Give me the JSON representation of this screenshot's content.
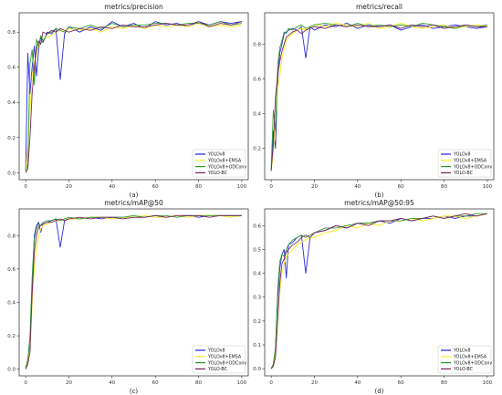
{
  "chart_data": [
    {
      "type": "line",
      "title": "metrics/precision",
      "caption": "(a)",
      "xlabel": "",
      "ylabel": "",
      "xlim": [
        -3,
        103
      ],
      "ylim": [
        -0.04,
        0.91
      ],
      "xticks": [
        0,
        20,
        40,
        60,
        80,
        100
      ],
      "yticks": [
        0.0,
        0.2,
        0.4,
        0.6,
        0.8
      ],
      "ytick_labels": [
        "0.0",
        "0.2",
        "0.4",
        "0.6",
        "0.8"
      ],
      "grid": false,
      "legend": "lower-right",
      "x": [
        0,
        1,
        2,
        3,
        4,
        5,
        6,
        7,
        8,
        10,
        12,
        14,
        16,
        18,
        20,
        25,
        30,
        35,
        40,
        45,
        50,
        55,
        60,
        65,
        70,
        75,
        80,
        85,
        90,
        95,
        100
      ],
      "series": [
        {
          "name": "YOLOv8",
          "values": [
            0.01,
            0.68,
            0.45,
            0.6,
            0.72,
            0.55,
            0.7,
            0.77,
            0.74,
            0.8,
            0.79,
            0.82,
            0.53,
            0.79,
            0.83,
            0.8,
            0.83,
            0.81,
            0.86,
            0.83,
            0.85,
            0.82,
            0.86,
            0.84,
            0.85,
            0.83,
            0.86,
            0.84,
            0.86,
            0.85,
            0.86
          ]
        },
        {
          "name": "YOLOv8+EMSA",
          "values": [
            0.0,
            0.15,
            0.35,
            0.55,
            0.62,
            0.68,
            0.72,
            0.74,
            0.76,
            0.77,
            0.78,
            0.8,
            0.81,
            0.8,
            0.82,
            0.81,
            0.82,
            0.8,
            0.83,
            0.82,
            0.84,
            0.82,
            0.84,
            0.83,
            0.84,
            0.83,
            0.85,
            0.83,
            0.84,
            0.83,
            0.84
          ]
        },
        {
          "name": "YOLOv8+ODConv",
          "values": [
            0.01,
            0.05,
            0.62,
            0.7,
            0.5,
            0.76,
            0.72,
            0.78,
            0.75,
            0.79,
            0.8,
            0.82,
            0.81,
            0.8,
            0.83,
            0.82,
            0.84,
            0.82,
            0.85,
            0.83,
            0.84,
            0.84,
            0.85,
            0.85,
            0.84,
            0.85,
            0.85,
            0.84,
            0.86,
            0.84,
            0.85
          ]
        },
        {
          "name": "YOLO-BC",
          "values": [
            0.0,
            0.02,
            0.2,
            0.45,
            0.6,
            0.7,
            0.75,
            0.73,
            0.8,
            0.79,
            0.81,
            0.8,
            0.82,
            0.81,
            0.8,
            0.82,
            0.81,
            0.83,
            0.82,
            0.84,
            0.83,
            0.83,
            0.84,
            0.85,
            0.84,
            0.84,
            0.86,
            0.83,
            0.85,
            0.84,
            0.86
          ]
        }
      ]
    },
    {
      "type": "line",
      "title": "metrics/recall",
      "caption": "(b)",
      "xlabel": "",
      "ylabel": "",
      "xlim": [
        -3,
        103
      ],
      "ylim": [
        0.02,
        0.98
      ],
      "xticks": [
        0,
        20,
        40,
        60,
        80,
        100
      ],
      "yticks": [
        0.2,
        0.4,
        0.6,
        0.8
      ],
      "ytick_labels": [
        "0.2",
        "0.4",
        "0.6",
        "0.8"
      ],
      "grid": false,
      "legend": "lower-right",
      "x": [
        0,
        1,
        2,
        3,
        4,
        5,
        6,
        7,
        8,
        10,
        12,
        14,
        16,
        18,
        20,
        25,
        30,
        35,
        40,
        45,
        50,
        55,
        60,
        65,
        70,
        75,
        80,
        85,
        90,
        95,
        100
      ],
      "series": [
        {
          "name": "YOLOv8",
          "values": [
            0.07,
            0.3,
            0.2,
            0.6,
            0.75,
            0.8,
            0.86,
            0.87,
            0.88,
            0.89,
            0.88,
            0.9,
            0.72,
            0.9,
            0.88,
            0.91,
            0.9,
            0.92,
            0.89,
            0.91,
            0.9,
            0.91,
            0.88,
            0.9,
            0.91,
            0.89,
            0.9,
            0.91,
            0.9,
            0.89,
            0.9
          ]
        },
        {
          "name": "YOLOv8+EMSA",
          "values": [
            0.07,
            0.18,
            0.35,
            0.55,
            0.62,
            0.72,
            0.78,
            0.82,
            0.84,
            0.86,
            0.88,
            0.89,
            0.88,
            0.9,
            0.91,
            0.9,
            0.92,
            0.91,
            0.9,
            0.92,
            0.89,
            0.9,
            0.92,
            0.9,
            0.89,
            0.9,
            0.91,
            0.89,
            0.9,
            0.91,
            0.9
          ]
        },
        {
          "name": "YOLOv8+ODConv",
          "values": [
            0.08,
            0.42,
            0.3,
            0.68,
            0.78,
            0.82,
            0.87,
            0.86,
            0.89,
            0.88,
            0.9,
            0.91,
            0.89,
            0.9,
            0.91,
            0.92,
            0.91,
            0.9,
            0.92,
            0.9,
            0.91,
            0.9,
            0.91,
            0.9,
            0.92,
            0.91,
            0.9,
            0.89,
            0.91,
            0.9,
            0.91
          ]
        },
        {
          "name": "YOLO-BC",
          "values": [
            0.07,
            0.22,
            0.5,
            0.62,
            0.7,
            0.76,
            0.8,
            0.84,
            0.85,
            0.87,
            0.88,
            0.86,
            0.88,
            0.89,
            0.9,
            0.89,
            0.91,
            0.9,
            0.91,
            0.9,
            0.9,
            0.91,
            0.89,
            0.91,
            0.9,
            0.91,
            0.89,
            0.9,
            0.91,
            0.9,
            0.9
          ]
        }
      ]
    },
    {
      "type": "line",
      "title": "metrics/mAP@50",
      "caption": "(c)",
      "xlabel": "",
      "ylabel": "",
      "xlim": [
        -3,
        103
      ],
      "ylim": [
        -0.04,
        0.96
      ],
      "xticks": [
        0,
        20,
        40,
        60,
        80,
        100
      ],
      "yticks": [
        0.0,
        0.2,
        0.4,
        0.6,
        0.8
      ],
      "ytick_labels": [
        "0.0",
        "0.2",
        "0.4",
        "0.6",
        "0.8"
      ],
      "grid": false,
      "legend": "lower-right",
      "x": [
        0,
        1,
        2,
        3,
        4,
        5,
        6,
        7,
        8,
        10,
        12,
        14,
        16,
        18,
        20,
        25,
        30,
        35,
        40,
        45,
        50,
        55,
        60,
        65,
        70,
        75,
        80,
        85,
        90,
        95,
        100
      ],
      "series": [
        {
          "name": "YOLOv8",
          "values": [
            0.01,
            0.05,
            0.15,
            0.5,
            0.8,
            0.86,
            0.88,
            0.82,
            0.87,
            0.88,
            0.89,
            0.9,
            0.73,
            0.89,
            0.9,
            0.9,
            0.91,
            0.9,
            0.91,
            0.91,
            0.91,
            0.91,
            0.92,
            0.91,
            0.92,
            0.92,
            0.91,
            0.92,
            0.92,
            0.92,
            0.92
          ]
        },
        {
          "name": "YOLOv8+EMSA",
          "values": [
            0.0,
            0.04,
            0.12,
            0.4,
            0.62,
            0.72,
            0.8,
            0.84,
            0.86,
            0.87,
            0.88,
            0.89,
            0.89,
            0.9,
            0.9,
            0.9,
            0.91,
            0.91,
            0.9,
            0.91,
            0.91,
            0.92,
            0.91,
            0.91,
            0.92,
            0.91,
            0.92,
            0.92,
            0.92,
            0.91,
            0.92
          ]
        },
        {
          "name": "YOLOv8+ODConv",
          "values": [
            0.01,
            0.06,
            0.2,
            0.55,
            0.78,
            0.84,
            0.87,
            0.86,
            0.88,
            0.89,
            0.89,
            0.9,
            0.89,
            0.9,
            0.91,
            0.9,
            0.91,
            0.91,
            0.91,
            0.91,
            0.92,
            0.91,
            0.92,
            0.92,
            0.91,
            0.92,
            0.92,
            0.92,
            0.92,
            0.92,
            0.92
          ]
        },
        {
          "name": "YOLO-BC",
          "values": [
            0.0,
            0.03,
            0.1,
            0.45,
            0.7,
            0.8,
            0.85,
            0.86,
            0.87,
            0.88,
            0.88,
            0.89,
            0.9,
            0.89,
            0.9,
            0.91,
            0.9,
            0.91,
            0.91,
            0.9,
            0.91,
            0.91,
            0.92,
            0.91,
            0.92,
            0.92,
            0.92,
            0.91,
            0.92,
            0.92,
            0.92
          ]
        }
      ]
    },
    {
      "type": "line",
      "title": "metrics/mAP@50:95",
      "caption": "(d)",
      "xlabel": "",
      "ylabel": "",
      "xlim": [
        -3,
        103
      ],
      "ylim": [
        -0.03,
        0.67
      ],
      "xticks": [
        0,
        20,
        40,
        60,
        80,
        100
      ],
      "yticks": [
        0.0,
        0.1,
        0.2,
        0.3,
        0.4,
        0.5,
        0.6
      ],
      "ytick_labels": [
        "0.0",
        "0.1",
        "0.2",
        "0.3",
        "0.4",
        "0.5",
        "0.6"
      ],
      "grid": false,
      "legend": "lower-right",
      "x": [
        0,
        1,
        2,
        3,
        4,
        5,
        6,
        7,
        8,
        10,
        12,
        14,
        16,
        18,
        20,
        25,
        30,
        35,
        40,
        45,
        50,
        55,
        60,
        65,
        70,
        75,
        80,
        85,
        90,
        95,
        100
      ],
      "series": [
        {
          "name": "YOLOv8",
          "values": [
            0.0,
            0.02,
            0.08,
            0.3,
            0.42,
            0.48,
            0.5,
            0.38,
            0.52,
            0.53,
            0.55,
            0.56,
            0.4,
            0.55,
            0.57,
            0.58,
            0.6,
            0.59,
            0.61,
            0.61,
            0.62,
            0.61,
            0.63,
            0.62,
            0.63,
            0.63,
            0.64,
            0.63,
            0.64,
            0.64,
            0.65
          ]
        },
        {
          "name": "YOLOv8+EMSA",
          "values": [
            0.0,
            0.02,
            0.06,
            0.22,
            0.33,
            0.4,
            0.44,
            0.47,
            0.48,
            0.5,
            0.52,
            0.53,
            0.54,
            0.55,
            0.55,
            0.57,
            0.58,
            0.6,
            0.59,
            0.61,
            0.6,
            0.62,
            0.62,
            0.63,
            0.62,
            0.63,
            0.64,
            0.64,
            0.63,
            0.64,
            0.65
          ]
        },
        {
          "name": "YOLOv8+ODConv",
          "values": [
            0.0,
            0.02,
            0.09,
            0.33,
            0.45,
            0.48,
            0.47,
            0.5,
            0.52,
            0.54,
            0.55,
            0.56,
            0.55,
            0.56,
            0.57,
            0.59,
            0.59,
            0.6,
            0.61,
            0.61,
            0.62,
            0.62,
            0.62,
            0.63,
            0.63,
            0.64,
            0.63,
            0.64,
            0.64,
            0.65,
            0.65
          ]
        },
        {
          "name": "YOLO-BC",
          "values": [
            0.0,
            0.01,
            0.05,
            0.2,
            0.36,
            0.44,
            0.46,
            0.49,
            0.5,
            0.52,
            0.53,
            0.55,
            0.56,
            0.55,
            0.57,
            0.58,
            0.6,
            0.59,
            0.61,
            0.6,
            0.62,
            0.62,
            0.63,
            0.62,
            0.63,
            0.64,
            0.63,
            0.64,
            0.65,
            0.64,
            0.65
          ]
        }
      ]
    }
  ],
  "series_colors": [
    "#1f1fe0",
    "#f5ef2a",
    "#2a9a2a",
    "#7a1f5a"
  ]
}
